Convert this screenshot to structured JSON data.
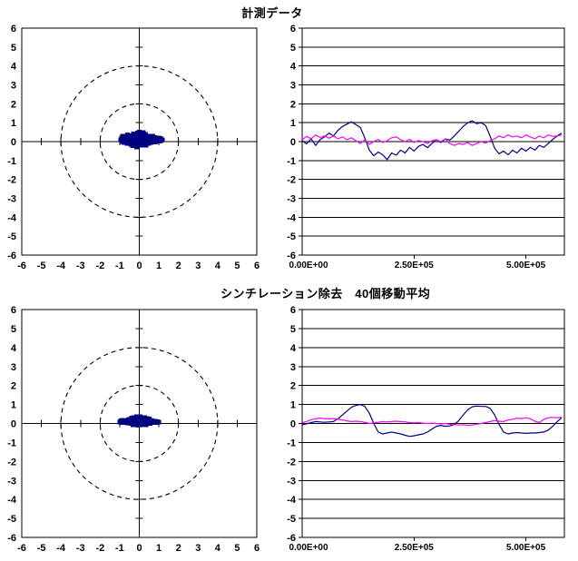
{
  "page": {
    "background": "#FFFFFF"
  },
  "titles": {
    "measured": "計測データ",
    "filtered": "シンチレーション除去　40個移動平均"
  },
  "colors": {
    "axis": "#000000",
    "grid": "#000000",
    "scatter_marker": "#000080",
    "series_blue": "#000080",
    "series_magenta": "#FF00FF"
  },
  "chart_data": [
    {
      "id": "scatter-measured",
      "type": "scatter",
      "title": "計測データ",
      "xlim": [
        -6,
        6
      ],
      "ylim": [
        -6,
        6
      ],
      "xticks": [
        -6,
        -5,
        -4,
        -3,
        -2,
        -1,
        0,
        1,
        2,
        3,
        4,
        5,
        6
      ],
      "yticks": [
        6,
        5,
        4,
        3,
        2,
        1,
        0,
        -1,
        -2,
        -3,
        -4,
        -5,
        -6
      ],
      "reference_circles": [
        2,
        4
      ],
      "marker_color": "#000080",
      "points": [
        [
          -0.95,
          0.1
        ],
        [
          -0.9,
          0.2
        ],
        [
          -0.9,
          0.0
        ],
        [
          -0.85,
          0.28
        ],
        [
          -0.8,
          0.12
        ],
        [
          -0.78,
          -0.05
        ],
        [
          -0.72,
          0.3
        ],
        [
          -0.7,
          0.08
        ],
        [
          -0.65,
          0.2
        ],
        [
          -0.62,
          -0.1
        ],
        [
          -0.6,
          0.35
        ],
        [
          -0.55,
          0.15
        ],
        [
          -0.52,
          0.0
        ],
        [
          -0.5,
          0.28
        ],
        [
          -0.45,
          -0.15
        ],
        [
          -0.45,
          0.1
        ],
        [
          -0.4,
          0.32
        ],
        [
          -0.38,
          0.05
        ],
        [
          -0.35,
          -0.22
        ],
        [
          -0.32,
          0.2
        ],
        [
          -0.3,
          0.42
        ],
        [
          -0.28,
          0.0
        ],
        [
          -0.25,
          0.25
        ],
        [
          -0.22,
          -0.12
        ],
        [
          -0.2,
          0.1
        ],
        [
          -0.18,
          0.38
        ],
        [
          -0.15,
          -0.28
        ],
        [
          -0.12,
          0.05
        ],
        [
          -0.1,
          0.45
        ],
        [
          -0.08,
          0.22
        ],
        [
          -0.05,
          -0.15
        ],
        [
          -0.02,
          0.32
        ],
        [
          0.0,
          0.1
        ],
        [
          0.0,
          0.5
        ],
        [
          0.03,
          -0.05
        ],
        [
          0.05,
          0.25
        ],
        [
          0.08,
          0.42
        ],
        [
          0.1,
          0.0
        ],
        [
          0.12,
          0.15
        ],
        [
          0.15,
          -0.2
        ],
        [
          0.18,
          0.35
        ],
        [
          0.2,
          0.12
        ],
        [
          0.22,
          0.48
        ],
        [
          0.25,
          -0.08
        ],
        [
          0.28,
          0.28
        ],
        [
          0.3,
          0.05
        ],
        [
          0.32,
          0.38
        ],
        [
          0.35,
          -0.18
        ],
        [
          0.38,
          0.18
        ],
        [
          0.4,
          0.3
        ],
        [
          0.42,
          0.0
        ],
        [
          0.45,
          0.12
        ],
        [
          0.48,
          -0.1
        ],
        [
          0.5,
          0.25
        ],
        [
          0.55,
          0.08
        ],
        [
          0.58,
          0.3
        ],
        [
          0.6,
          -0.05
        ],
        [
          0.65,
          0.18
        ],
        [
          0.7,
          0.28
        ],
        [
          0.72,
          0.02
        ],
        [
          0.75,
          0.12
        ],
        [
          0.8,
          0.22
        ],
        [
          0.82,
          -0.02
        ],
        [
          0.85,
          0.1
        ],
        [
          0.9,
          0.2
        ],
        [
          0.92,
          0.02
        ],
        [
          0.95,
          0.12
        ],
        [
          1.0,
          0.2
        ],
        [
          1.02,
          0.02
        ],
        [
          1.05,
          0.12
        ],
        [
          1.1,
          0.18
        ],
        [
          1.12,
          0.04
        ],
        [
          1.18,
          0.1
        ]
      ]
    },
    {
      "id": "timeseries-measured",
      "type": "line",
      "xlim": [
        0,
        586000
      ],
      "ylim": [
        -6,
        6
      ],
      "yticks": [
        6,
        5,
        4,
        3,
        2,
        1,
        0,
        -1,
        -2,
        -3,
        -4,
        -5,
        -6
      ],
      "xticks": [
        {
          "value": 0,
          "label": "0.00E+00"
        },
        {
          "value": 250000,
          "label": "2.50E+05"
        },
        {
          "value": 500000,
          "label": "5.00E+05"
        }
      ],
      "x_step": 10000,
      "series": [
        {
          "color": "#000080",
          "y": [
            0.05,
            -0.12,
            0.15,
            -0.2,
            0.1,
            0.25,
            0.45,
            0.3,
            0.6,
            0.8,
            0.92,
            1.05,
            0.9,
            0.75,
            0.2,
            -0.45,
            -0.75,
            -0.55,
            -0.7,
            -0.95,
            -0.6,
            -0.72,
            -0.45,
            -0.6,
            -0.3,
            -0.5,
            -0.25,
            -0.15,
            -0.32,
            -0.1,
            0.1,
            -0.05,
            0.15,
            0.08,
            0.3,
            0.55,
            0.8,
            1.0,
            1.1,
            0.95,
            1.0,
            0.85,
            0.3,
            -0.35,
            -0.65,
            -0.5,
            -0.7,
            -0.45,
            -0.6,
            -0.35,
            -0.5,
            -0.3,
            -0.45,
            -0.2,
            -0.3,
            -0.1,
            0.12,
            0.3,
            0.45
          ]
        },
        {
          "color": "#FF00FF",
          "y": [
            0.1,
            0.28,
            0.15,
            0.35,
            0.22,
            0.3,
            0.18,
            0.3,
            0.15,
            0.25,
            0.1,
            0.2,
            0.05,
            -0.1,
            0.1,
            -0.15,
            0.0,
            0.12,
            -0.05,
            0.05,
            0.2,
            0.25,
            0.1,
            0.0,
            0.12,
            -0.05,
            0.06,
            0.0,
            -0.1,
            0.05,
            0.1,
            0.0,
            0.15,
            -0.1,
            -0.2,
            -0.1,
            -0.15,
            -0.05,
            -0.2,
            -0.1,
            0.0,
            -0.08,
            0.05,
            0.15,
            0.3,
            0.2,
            0.35,
            0.25,
            0.3,
            0.2,
            0.35,
            0.25,
            0.15,
            0.3,
            0.2,
            0.35,
            0.28,
            0.3,
            0.35
          ]
        }
      ]
    },
    {
      "id": "scatter-filtered",
      "type": "scatter",
      "title": "シンチレーション除去　40個移動平均",
      "xlim": [
        -6,
        6
      ],
      "ylim": [
        -6,
        6
      ],
      "xticks": [
        -6,
        -5,
        -4,
        -3,
        -2,
        -1,
        0,
        1,
        2,
        3,
        4,
        5,
        6
      ],
      "yticks": [
        6,
        5,
        4,
        3,
        2,
        1,
        0,
        -1,
        -2,
        -3,
        -4,
        -5,
        -6
      ],
      "reference_circles": [
        2,
        4
      ],
      "marker_color": "#000080",
      "points": [
        [
          -1.0,
          0.08
        ],
        [
          -0.95,
          0.14
        ],
        [
          -0.9,
          0.04
        ],
        [
          -0.85,
          0.16
        ],
        [
          -0.8,
          0.08
        ],
        [
          -0.75,
          0.14
        ],
        [
          -0.7,
          0.04
        ],
        [
          -0.65,
          0.12
        ],
        [
          -0.6,
          0.02
        ],
        [
          -0.58,
          0.18
        ],
        [
          -0.52,
          0.08
        ],
        [
          -0.5,
          0.22
        ],
        [
          -0.45,
          0.0
        ],
        [
          -0.42,
          0.14
        ],
        [
          -0.4,
          0.28
        ],
        [
          -0.35,
          0.06
        ],
        [
          -0.32,
          -0.08
        ],
        [
          -0.3,
          0.2
        ],
        [
          -0.28,
          0.32
        ],
        [
          -0.25,
          0.1
        ],
        [
          -0.2,
          -0.05
        ],
        [
          -0.2,
          0.24
        ],
        [
          -0.15,
          0.35
        ],
        [
          -0.12,
          0.08
        ],
        [
          -0.1,
          0.2
        ],
        [
          -0.08,
          -0.1
        ],
        [
          -0.05,
          0.3
        ],
        [
          -0.02,
          0.12
        ],
        [
          0.0,
          0.0
        ],
        [
          0.02,
          0.24
        ],
        [
          0.05,
          0.36
        ],
        [
          0.08,
          0.08
        ],
        [
          0.1,
          -0.08
        ],
        [
          0.12,
          0.18
        ],
        [
          0.15,
          0.3
        ],
        [
          0.18,
          0.04
        ],
        [
          0.2,
          0.22
        ],
        [
          0.22,
          -0.05
        ],
        [
          0.25,
          0.12
        ],
        [
          0.28,
          0.32
        ],
        [
          0.3,
          0.06
        ],
        [
          0.32,
          0.2
        ],
        [
          0.35,
          -0.08
        ],
        [
          0.38,
          0.14
        ],
        [
          0.4,
          0.26
        ],
        [
          0.42,
          0.02
        ],
        [
          0.45,
          0.16
        ],
        [
          0.5,
          0.08
        ],
        [
          0.5,
          0.24
        ],
        [
          0.55,
          0.0
        ],
        [
          0.58,
          0.16
        ],
        [
          0.6,
          0.08
        ],
        [
          0.65,
          0.14
        ],
        [
          0.7,
          0.04
        ],
        [
          0.72,
          0.12
        ],
        [
          0.78,
          0.08
        ],
        [
          0.82,
          0.12
        ],
        [
          0.85,
          0.04
        ],
        [
          0.9,
          0.1
        ],
        [
          0.95,
          0.06
        ],
        [
          1.0,
          0.07
        ]
      ]
    },
    {
      "id": "timeseries-filtered",
      "type": "line",
      "xlim": [
        0,
        586000
      ],
      "ylim": [
        -6,
        6
      ],
      "yticks": [
        6,
        5,
        4,
        3,
        2,
        1,
        0,
        -1,
        -2,
        -3,
        -4,
        -5,
        -6
      ],
      "xticks": [
        {
          "value": 0,
          "label": "0.00E+00"
        },
        {
          "value": 250000,
          "label": "2.50E+05"
        },
        {
          "value": 500000,
          "label": "5.00E+05"
        }
      ],
      "x_step": 10000,
      "series": [
        {
          "color": "#000080",
          "y": [
            -0.07,
            -0.02,
            0.05,
            0.1,
            0.08,
            0.06,
            0.08,
            0.1,
            0.25,
            0.45,
            0.65,
            0.85,
            0.95,
            1.0,
            0.9,
            0.55,
            0.0,
            -0.45,
            -0.55,
            -0.5,
            -0.45,
            -0.5,
            -0.55,
            -0.62,
            -0.68,
            -0.65,
            -0.6,
            -0.55,
            -0.45,
            -0.3,
            -0.15,
            -0.1,
            -0.15,
            -0.13,
            -0.05,
            0.15,
            0.45,
            0.72,
            0.88,
            0.92,
            0.9,
            0.9,
            0.8,
            0.45,
            -0.05,
            -0.45,
            -0.55,
            -0.5,
            -0.48,
            -0.5,
            -0.52,
            -0.5,
            -0.5,
            -0.48,
            -0.45,
            -0.35,
            -0.15,
            0.1,
            0.3
          ]
        },
        {
          "color": "#FF00FF",
          "y": [
            0.05,
            0.1,
            0.2,
            0.25,
            0.28,
            0.26,
            0.24,
            0.26,
            0.22,
            0.18,
            0.14,
            0.1,
            0.12,
            0.1,
            0.06,
            0.0,
            0.03,
            0.06,
            0.1,
            0.08,
            0.1,
            0.12,
            0.1,
            0.08,
            0.05,
            0.03,
            0.05,
            0.02,
            0.0,
            0.02,
            0.0,
            -0.02,
            0.0,
            -0.04,
            -0.06,
            -0.08,
            -0.06,
            -0.1,
            -0.08,
            -0.04,
            0.0,
            0.05,
            0.1,
            0.15,
            0.12,
            0.1,
            0.18,
            0.22,
            0.28,
            0.26,
            0.3,
            0.25,
            0.12,
            0.05,
            0.22,
            0.3,
            0.32,
            0.3,
            0.33
          ]
        }
      ]
    }
  ]
}
